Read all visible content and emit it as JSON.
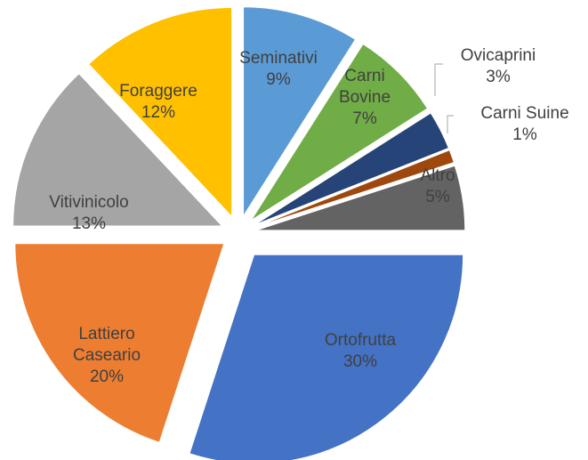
{
  "chart_data": {
    "type": "pie",
    "categories": [
      "Seminativi",
      "Carni Bovine",
      "Ovicaprini",
      "Carni Suine",
      "Altro",
      "Ortofrutta",
      "Lattiero Caseario",
      "Vitivinicolo",
      "Foraggere"
    ],
    "values": [
      9,
      7,
      3,
      1,
      5,
      30,
      20,
      13,
      12
    ],
    "value_labels": [
      "9%",
      "7%",
      "3%",
      "1%",
      "5%",
      "30%",
      "20%",
      "13%",
      "12%"
    ],
    "colors": [
      "#5b9bd5",
      "#70ad47",
      "#264478",
      "#9e480e",
      "#636363",
      "#4472c4",
      "#ed7d31",
      "#a5a5a5",
      "#ffc000"
    ]
  }
}
